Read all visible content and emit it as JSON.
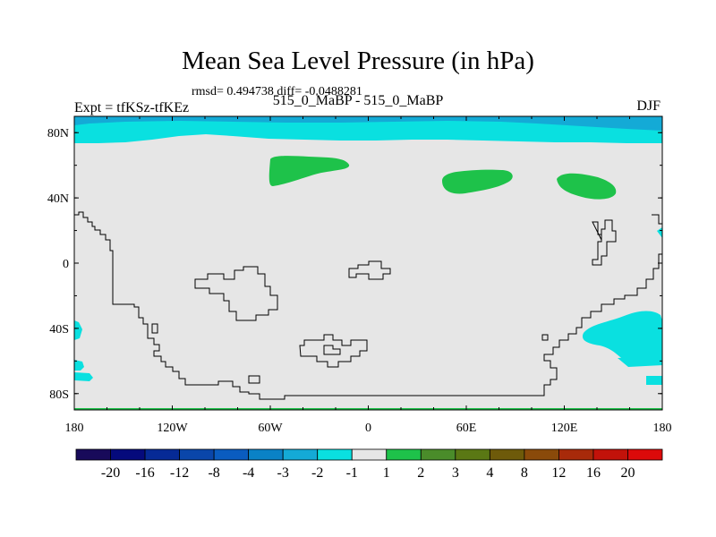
{
  "title": "Mean Sea Level Pressure (in hPa)",
  "stats": "rmsd= 0.494738  diff= -0.0488281",
  "left_label": "Expt = tfKSz-tfKEz",
  "center_label": "515_0_MaBP - 515_0_MaBP",
  "right_label": "DJF",
  "map": {
    "lon_range": [
      -180,
      180
    ],
    "lat_range": [
      -90,
      90
    ],
    "x_ticks": [
      {
        "value": -180,
        "label": "180"
      },
      {
        "value": -120,
        "label": "120W"
      },
      {
        "value": -60,
        "label": "60W"
      },
      {
        "value": 0,
        "label": "0"
      },
      {
        "value": 60,
        "label": "60E"
      },
      {
        "value": 120,
        "label": "120E"
      },
      {
        "value": 180,
        "label": "180"
      }
    ],
    "y_ticks": [
      {
        "value": 80,
        "label": "80N"
      },
      {
        "value": 40,
        "label": "40N"
      },
      {
        "value": 0,
        "label": "0"
      },
      {
        "value": -40,
        "label": "40S"
      },
      {
        "value": -80,
        "label": "80S"
      }
    ],
    "background_color": "#e6e6e6"
  },
  "colorbar": {
    "labels": [
      "-20",
      "-16",
      "-12",
      "-8",
      "-4",
      "-3",
      "-2",
      "-1",
      "1",
      "2",
      "3",
      "4",
      "8",
      "12",
      "16",
      "20"
    ],
    "colors": [
      "#180a5a",
      "#050a7c",
      "#062a96",
      "#0a46aa",
      "#0a5cc0",
      "#0a82c6",
      "#14aad6",
      "#0ae0e0",
      "#e6e6e6",
      "#1ec24a",
      "#4a8c2a",
      "#5a7814",
      "#6e5a0a",
      "#8a4a0a",
      "#a82a0a",
      "#c2120a",
      "#dc0a0a"
    ]
  }
}
